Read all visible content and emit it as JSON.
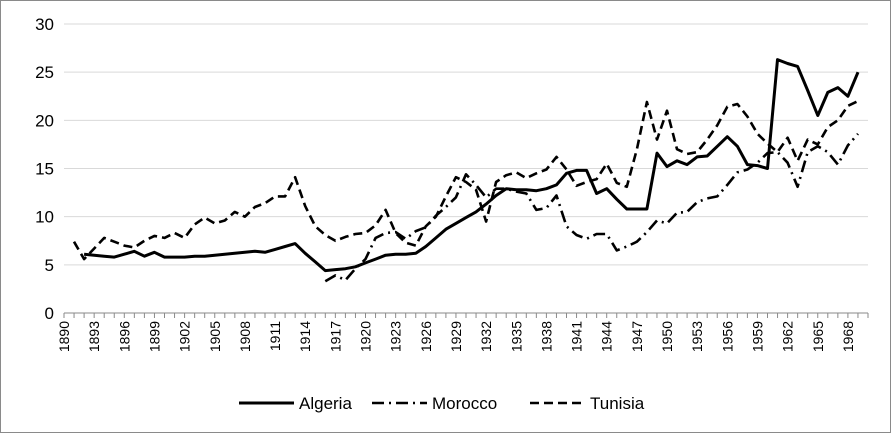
{
  "chart_data": {
    "type": "line",
    "title": "",
    "xlabel": "",
    "ylabel": "",
    "ylim": [
      0,
      30
    ],
    "yticks": [
      0,
      5,
      10,
      15,
      20,
      25,
      30
    ],
    "xlim": [
      1890,
      1970
    ],
    "xticks": [
      1890,
      1893,
      1896,
      1899,
      1902,
      1905,
      1908,
      1911,
      1914,
      1917,
      1920,
      1923,
      1926,
      1929,
      1932,
      1935,
      1938,
      1941,
      1944,
      1947,
      1950,
      1953,
      1956,
      1959,
      1962,
      1965,
      1968
    ],
    "grid": "horizontal",
    "legend_position": "bottom",
    "series": [
      {
        "name": "Algeria",
        "style": "solid",
        "color": "#000000",
        "points": [
          [
            1892,
            6.1
          ],
          [
            1893,
            6.0
          ],
          [
            1894,
            5.9
          ],
          [
            1895,
            5.8
          ],
          [
            1896,
            6.1
          ],
          [
            1897,
            6.4
          ],
          [
            1898,
            5.9
          ],
          [
            1899,
            6.3
          ],
          [
            1900,
            5.8
          ],
          [
            1901,
            5.8
          ],
          [
            1902,
            5.8
          ],
          [
            1903,
            5.9
          ],
          [
            1904,
            5.9
          ],
          [
            1905,
            6.0
          ],
          [
            1906,
            6.1
          ],
          [
            1907,
            6.2
          ],
          [
            1908,
            6.3
          ],
          [
            1909,
            6.4
          ],
          [
            1910,
            6.3
          ],
          [
            1911,
            6.6
          ],
          [
            1912,
            6.9
          ],
          [
            1913,
            7.2
          ],
          [
            1914,
            6.2
          ],
          [
            1915,
            5.3
          ],
          [
            1916,
            4.4
          ],
          [
            1917,
            4.5
          ],
          [
            1918,
            4.6
          ],
          [
            1919,
            4.8
          ],
          [
            1920,
            5.2
          ],
          [
            1921,
            5.6
          ],
          [
            1922,
            6.0
          ],
          [
            1923,
            6.1
          ],
          [
            1924,
            6.1
          ],
          [
            1925,
            6.2
          ],
          [
            1926,
            6.9
          ],
          [
            1927,
            7.8
          ],
          [
            1928,
            8.7
          ],
          [
            1929,
            9.3
          ],
          [
            1930,
            9.9
          ],
          [
            1931,
            10.5
          ],
          [
            1932,
            11.3
          ],
          [
            1933,
            12.2
          ],
          [
            1934,
            12.9
          ],
          [
            1935,
            12.8
          ],
          [
            1936,
            12.8
          ],
          [
            1937,
            12.7
          ],
          [
            1938,
            12.9
          ],
          [
            1939,
            13.3
          ],
          [
            1940,
            14.5
          ],
          [
            1941,
            14.8
          ],
          [
            1942,
            14.8
          ],
          [
            1943,
            12.4
          ],
          [
            1944,
            12.9
          ],
          [
            1945,
            11.8
          ],
          [
            1946,
            10.8
          ],
          [
            1947,
            10.8
          ],
          [
            1948,
            10.8
          ],
          [
            1949,
            16.6
          ],
          [
            1950,
            15.2
          ],
          [
            1951,
            15.8
          ],
          [
            1952,
            15.4
          ],
          [
            1953,
            16.2
          ],
          [
            1954,
            16.3
          ],
          [
            1955,
            17.3
          ],
          [
            1956,
            18.3
          ],
          [
            1957,
            17.3
          ],
          [
            1958,
            15.4
          ],
          [
            1959,
            15.3
          ],
          [
            1960,
            15.0
          ],
          [
            1961,
            26.3
          ],
          [
            1962,
            25.9
          ],
          [
            1963,
            25.6
          ],
          [
            1964,
            23.1
          ],
          [
            1965,
            20.5
          ],
          [
            1966,
            22.9
          ],
          [
            1967,
            23.4
          ],
          [
            1968,
            22.5
          ],
          [
            1969,
            25.0
          ]
        ]
      },
      {
        "name": "Morocco",
        "style": "dash-dot",
        "color": "#000000",
        "points": [
          [
            1916,
            3.3
          ],
          [
            1917,
            3.9
          ],
          [
            1918,
            3.4
          ],
          [
            1919,
            4.6
          ],
          [
            1920,
            5.6
          ],
          [
            1921,
            7.8
          ],
          [
            1922,
            8.3
          ],
          [
            1923,
            8.4
          ],
          [
            1924,
            7.7
          ],
          [
            1925,
            8.5
          ],
          [
            1926,
            8.9
          ],
          [
            1927,
            10.1
          ],
          [
            1928,
            11.0
          ],
          [
            1929,
            12.0
          ],
          [
            1930,
            14.4
          ],
          [
            1931,
            13.3
          ],
          [
            1932,
            12.0
          ],
          [
            1933,
            12.9
          ],
          [
            1934,
            12.9
          ],
          [
            1935,
            12.6
          ],
          [
            1936,
            12.4
          ],
          [
            1937,
            10.7
          ],
          [
            1938,
            10.9
          ],
          [
            1939,
            12.2
          ],
          [
            1940,
            9.0
          ],
          [
            1941,
            8.1
          ],
          [
            1942,
            7.7
          ],
          [
            1943,
            8.2
          ],
          [
            1944,
            8.2
          ],
          [
            1945,
            6.5
          ],
          [
            1946,
            6.9
          ],
          [
            1947,
            7.4
          ],
          [
            1948,
            8.4
          ],
          [
            1949,
            9.6
          ],
          [
            1950,
            9.3
          ],
          [
            1951,
            10.4
          ],
          [
            1952,
            10.5
          ],
          [
            1953,
            11.5
          ],
          [
            1954,
            11.9
          ],
          [
            1955,
            12.1
          ],
          [
            1956,
            13.3
          ],
          [
            1957,
            14.6
          ],
          [
            1958,
            14.9
          ],
          [
            1959,
            15.6
          ],
          [
            1960,
            16.6
          ],
          [
            1961,
            16.7
          ],
          [
            1962,
            15.6
          ],
          [
            1963,
            13.1
          ],
          [
            1964,
            16.7
          ],
          [
            1965,
            17.3
          ],
          [
            1966,
            16.7
          ],
          [
            1967,
            15.4
          ],
          [
            1968,
            17.4
          ],
          [
            1969,
            18.6
          ]
        ]
      },
      {
        "name": "Tunisia",
        "style": "dashed",
        "color": "#000000",
        "points": [
          [
            1891,
            7.4
          ],
          [
            1892,
            5.6
          ],
          [
            1893,
            6.7
          ],
          [
            1894,
            7.8
          ],
          [
            1895,
            7.4
          ],
          [
            1896,
            7.0
          ],
          [
            1897,
            6.8
          ],
          [
            1898,
            7.5
          ],
          [
            1899,
            8.0
          ],
          [
            1900,
            7.8
          ],
          [
            1901,
            8.3
          ],
          [
            1902,
            7.8
          ],
          [
            1903,
            9.2
          ],
          [
            1904,
            9.9
          ],
          [
            1905,
            9.3
          ],
          [
            1906,
            9.6
          ],
          [
            1907,
            10.5
          ],
          [
            1908,
            10.0
          ],
          [
            1909,
            11.0
          ],
          [
            1910,
            11.4
          ],
          [
            1911,
            12.1
          ],
          [
            1912,
            12.1
          ],
          [
            1913,
            14.1
          ],
          [
            1914,
            11.1
          ],
          [
            1915,
            9.0
          ],
          [
            1916,
            8.1
          ],
          [
            1917,
            7.5
          ],
          [
            1918,
            7.9
          ],
          [
            1919,
            8.2
          ],
          [
            1920,
            8.3
          ],
          [
            1921,
            9.1
          ],
          [
            1922,
            10.7
          ],
          [
            1923,
            8.3
          ],
          [
            1924,
            7.3
          ],
          [
            1925,
            7.0
          ],
          [
            1926,
            9.0
          ],
          [
            1927,
            10.0
          ],
          [
            1928,
            12.1
          ],
          [
            1929,
            14.1
          ],
          [
            1930,
            13.6
          ],
          [
            1931,
            12.8
          ],
          [
            1932,
            9.5
          ],
          [
            1933,
            13.6
          ],
          [
            1934,
            14.3
          ],
          [
            1935,
            14.6
          ],
          [
            1936,
            14.0
          ],
          [
            1937,
            14.5
          ],
          [
            1938,
            14.9
          ],
          [
            1939,
            16.2
          ],
          [
            1940,
            14.9
          ],
          [
            1941,
            13.2
          ],
          [
            1942,
            13.6
          ],
          [
            1943,
            13.9
          ],
          [
            1944,
            15.5
          ],
          [
            1945,
            13.5
          ],
          [
            1946,
            13.1
          ],
          [
            1947,
            17.0
          ],
          [
            1948,
            21.9
          ],
          [
            1949,
            18.0
          ],
          [
            1950,
            21.0
          ],
          [
            1951,
            17.0
          ],
          [
            1952,
            16.5
          ],
          [
            1953,
            16.7
          ],
          [
            1954,
            18.0
          ],
          [
            1955,
            19.5
          ],
          [
            1956,
            21.4
          ],
          [
            1957,
            21.7
          ],
          [
            1958,
            20.4
          ],
          [
            1959,
            18.6
          ],
          [
            1960,
            17.6
          ],
          [
            1961,
            16.7
          ],
          [
            1962,
            18.2
          ],
          [
            1963,
            15.8
          ],
          [
            1964,
            18.0
          ],
          [
            1965,
            17.5
          ],
          [
            1966,
            19.3
          ],
          [
            1967,
            20.0
          ],
          [
            1968,
            21.5
          ],
          [
            1969,
            22.0
          ]
        ]
      }
    ]
  }
}
